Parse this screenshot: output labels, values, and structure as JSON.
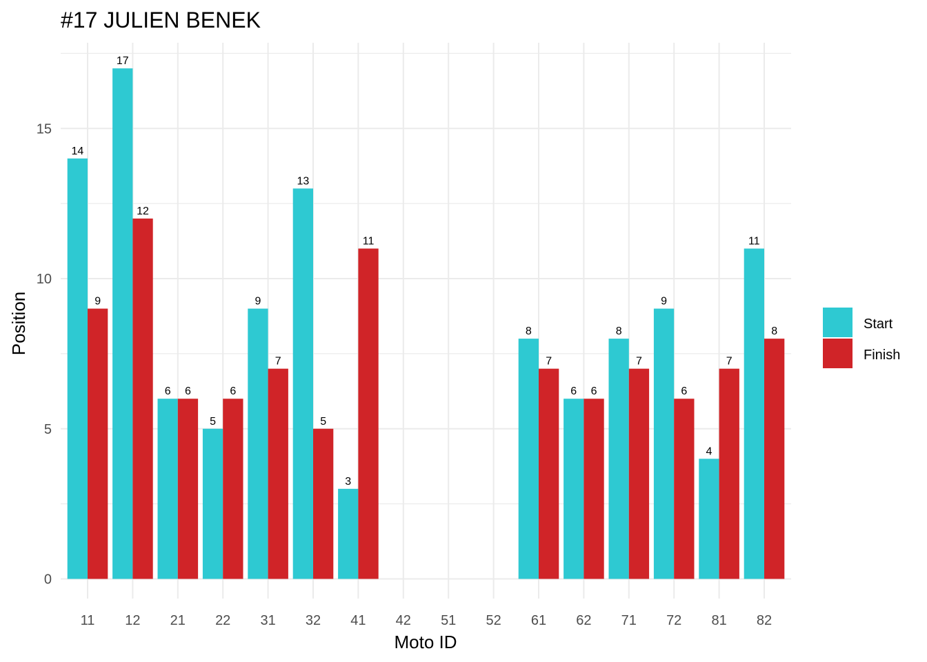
{
  "chart_data": {
    "type": "bar",
    "title": "#17 JULIEN BENEK",
    "xlabel": "Moto ID",
    "ylabel": "Position",
    "ylim": [
      0,
      17.85
    ],
    "y_ticks": [
      0,
      5,
      10,
      15
    ],
    "grid": true,
    "legend_position": "right",
    "categories": [
      "11",
      "12",
      "21",
      "22",
      "31",
      "32",
      "41",
      "42",
      "51",
      "52",
      "61",
      "62",
      "71",
      "72",
      "81",
      "82"
    ],
    "series": [
      {
        "name": "Start",
        "color": "#2ec9d2",
        "values": [
          14,
          17,
          6,
          5,
          9,
          13,
          3,
          null,
          null,
          null,
          8,
          6,
          8,
          9,
          4,
          11
        ]
      },
      {
        "name": "Finish",
        "color": "#d02428",
        "values": [
          9,
          12,
          6,
          6,
          7,
          5,
          11,
          null,
          null,
          null,
          7,
          6,
          7,
          6,
          7,
          8
        ]
      }
    ]
  }
}
